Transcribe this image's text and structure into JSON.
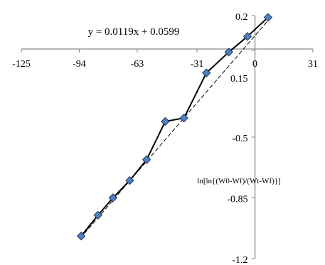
{
  "chart_data": {
    "type": "scatter",
    "title": "",
    "xlabel": "",
    "ylabel": "",
    "xlim": [
      -125,
      31
    ],
    "ylim": [
      -1.2,
      0.2
    ],
    "x_ticks": [
      "-125",
      "-94",
      "-63",
      "-31",
      "0",
      "31"
    ],
    "y_ticks": [
      "0.2",
      "0.15",
      "-0.5",
      "-0.85",
      "-1.2"
    ],
    "series": [
      {
        "x": [
          -93,
          -84,
          -76,
          -67,
          -58,
          -48,
          -38,
          -26,
          -14,
          -4,
          7
        ],
        "y": [
          -1.07,
          -0.95,
          -0.85,
          -0.75,
          -0.63,
          -0.41,
          -0.39,
          -0.13,
          -0.01,
          0.08,
          0.19
        ],
        "line_color": "#000000",
        "marker_color": "#4f81bd",
        "marker_edge": "#1f3864",
        "marker": "diamond"
      }
    ],
    "trendline": {
      "style": "dashed",
      "slope": 0.0119,
      "intercept": 0.0599,
      "label": "y = 0.0119x + 0.0599"
    },
    "annotation": "ln[ln{(W0-Wf)/(Wt-Wf)}]",
    "grid": false,
    "legend": "none"
  }
}
